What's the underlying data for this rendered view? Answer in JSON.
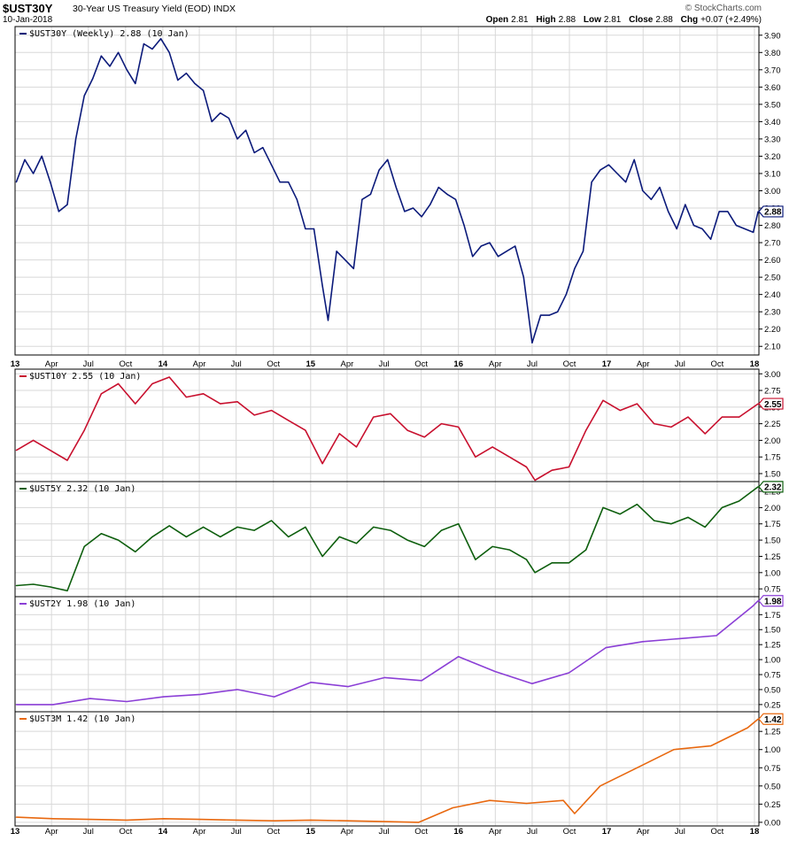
{
  "header": {
    "symbol": "$UST30Y",
    "description": "30-Year US Treasury Yield (EOD)",
    "exchange": "INDX",
    "date": "10-Jan-2018",
    "brand": "© StockCharts.com",
    "open_label": "Open",
    "open": "2.81",
    "high_label": "High",
    "high": "2.88",
    "low_label": "Low",
    "low": "2.81",
    "close_label": "Close",
    "close": "2.88",
    "chg_label": "Chg",
    "chg": "+0.07 (+2.49%)"
  },
  "colors": {
    "UST30Y": "#0b1a7a",
    "UST10Y": "#c8102e",
    "UST5Y": "#0d5e0d",
    "UST2Y": "#8b3fd6",
    "UST3M": "#e8680f",
    "grid": "#d8d8d8"
  },
  "chart_data": {
    "type": "line",
    "x_axis": {
      "start": "2013-01-01",
      "end": "2018-01-12",
      "tick_labels": [
        "13",
        "Apr",
        "Jul",
        "Oct",
        "14",
        "Apr",
        "Jul",
        "Oct",
        "15",
        "Apr",
        "Jul",
        "Oct",
        "16",
        "Apr",
        "Jul",
        "Oct",
        "17",
        "Apr",
        "Jul",
        "Oct",
        "18"
      ],
      "tick_dates": [
        "2013-01-01",
        "2013-04-01",
        "2013-07-01",
        "2013-10-01",
        "2014-01-01",
        "2014-04-01",
        "2014-07-01",
        "2014-10-01",
        "2015-01-01",
        "2015-04-01",
        "2015-07-01",
        "2015-10-01",
        "2016-01-01",
        "2016-04-01",
        "2016-07-01",
        "2016-10-01",
        "2017-01-01",
        "2017-04-01",
        "2017-07-01",
        "2017-10-01",
        "2018-01-01"
      ]
    },
    "panels": [
      {
        "label": "$UST30Y (Weekly) 2.88 (10 Jan)",
        "last_value": "2.88",
        "color_key": "UST30Y",
        "y_ticks": [
          "2.10",
          "2.20",
          "2.30",
          "2.40",
          "2.50",
          "2.60",
          "2.70",
          "2.80",
          "2.90",
          "3.00",
          "3.10",
          "3.20",
          "3.30",
          "3.40",
          "3.50",
          "3.60",
          "3.70",
          "3.80",
          "3.90"
        ],
        "ylim": [
          2.05,
          3.95
        ],
        "x": [
          "2013-01-04",
          "2013-01-25",
          "2013-02-15",
          "2013-03-08",
          "2013-03-29",
          "2013-04-19",
          "2013-05-10",
          "2013-05-31",
          "2013-06-21",
          "2013-07-12",
          "2013-08-02",
          "2013-08-23",
          "2013-09-13",
          "2013-10-04",
          "2013-10-25",
          "2013-11-15",
          "2013-12-06",
          "2013-12-27",
          "2014-01-17",
          "2014-02-07",
          "2014-02-28",
          "2014-03-21",
          "2014-04-11",
          "2014-05-02",
          "2014-05-23",
          "2014-06-13",
          "2014-07-04",
          "2014-07-25",
          "2014-08-15",
          "2014-09-05",
          "2014-09-26",
          "2014-10-17",
          "2014-11-07",
          "2014-11-28",
          "2014-12-19",
          "2015-01-09",
          "2015-01-30",
          "2015-02-13",
          "2015-03-06",
          "2015-03-27",
          "2015-04-17",
          "2015-05-08",
          "2015-05-29",
          "2015-06-19",
          "2015-07-10",
          "2015-07-31",
          "2015-08-21",
          "2015-09-11",
          "2015-10-02",
          "2015-10-23",
          "2015-11-13",
          "2015-12-04",
          "2015-12-25",
          "2016-01-15",
          "2016-02-05",
          "2016-02-26",
          "2016-03-18",
          "2016-04-08",
          "2016-04-29",
          "2016-05-20",
          "2016-06-10",
          "2016-07-01",
          "2016-07-22",
          "2016-08-12",
          "2016-09-02",
          "2016-09-23",
          "2016-10-14",
          "2016-11-04",
          "2016-11-25",
          "2016-12-16",
          "2017-01-06",
          "2017-01-27",
          "2017-02-17",
          "2017-03-10",
          "2017-03-31",
          "2017-04-21",
          "2017-05-12",
          "2017-06-02",
          "2017-06-23",
          "2017-07-14",
          "2017-08-04",
          "2017-08-25",
          "2017-09-15",
          "2017-10-06",
          "2017-10-27",
          "2017-11-17",
          "2017-12-08",
          "2017-12-29",
          "2018-01-10"
        ],
        "values": [
          3.05,
          3.18,
          3.1,
          3.2,
          3.05,
          2.88,
          2.92,
          3.3,
          3.55,
          3.65,
          3.78,
          3.72,
          3.8,
          3.7,
          3.62,
          3.85,
          3.82,
          3.88,
          3.8,
          3.64,
          3.68,
          3.62,
          3.58,
          3.4,
          3.45,
          3.42,
          3.3,
          3.35,
          3.22,
          3.25,
          3.15,
          3.05,
          3.05,
          2.95,
          2.78,
          2.78,
          2.45,
          2.25,
          2.65,
          2.6,
          2.55,
          2.95,
          2.98,
          3.12,
          3.18,
          3.02,
          2.88,
          2.9,
          2.85,
          2.92,
          3.02,
          2.98,
          2.95,
          2.8,
          2.62,
          2.68,
          2.7,
          2.62,
          2.65,
          2.68,
          2.5,
          2.12,
          2.28,
          2.28,
          2.3,
          2.4,
          2.55,
          2.65,
          3.05,
          3.12,
          3.15,
          3.1,
          3.05,
          3.18,
          3.0,
          2.95,
          3.02,
          2.88,
          2.78,
          2.92,
          2.8,
          2.78,
          2.72,
          2.88,
          2.88,
          2.8,
          2.78,
          2.76,
          2.88
        ]
      },
      {
        "label": "$UST10Y 2.55 (10 Jan)",
        "last_value": "2.55",
        "color_key": "UST10Y",
        "y_ticks": [
          "1.50",
          "1.75",
          "2.00",
          "2.25",
          "2.50",
          "2.75",
          "3.00"
        ],
        "ylim": [
          1.38,
          3.07
        ],
        "x": [
          "2013-01-04",
          "2013-02-15",
          "2013-03-29",
          "2013-05-10",
          "2013-06-21",
          "2013-08-02",
          "2013-09-13",
          "2013-10-25",
          "2013-12-06",
          "2014-01-17",
          "2014-02-28",
          "2014-04-11",
          "2014-05-23",
          "2014-07-04",
          "2014-08-15",
          "2014-09-26",
          "2014-11-07",
          "2014-12-19",
          "2015-01-30",
          "2015-03-13",
          "2015-04-24",
          "2015-06-05",
          "2015-07-17",
          "2015-08-28",
          "2015-10-09",
          "2015-11-20",
          "2016-01-01",
          "2016-02-12",
          "2016-03-25",
          "2016-05-06",
          "2016-06-17",
          "2016-07-08",
          "2016-08-19",
          "2016-09-30",
          "2016-11-11",
          "2016-12-23",
          "2017-02-03",
          "2017-03-17",
          "2017-04-28",
          "2017-06-09",
          "2017-07-21",
          "2017-09-01",
          "2017-10-13",
          "2017-11-24",
          "2018-01-10"
        ],
        "values": [
          1.85,
          2.0,
          1.85,
          1.7,
          2.15,
          2.7,
          2.85,
          2.55,
          2.85,
          2.95,
          2.65,
          2.7,
          2.55,
          2.58,
          2.38,
          2.45,
          2.3,
          2.15,
          1.65,
          2.1,
          1.9,
          2.35,
          2.4,
          2.15,
          2.05,
          2.25,
          2.2,
          1.75,
          1.9,
          1.75,
          1.6,
          1.4,
          1.55,
          1.6,
          2.15,
          2.6,
          2.45,
          2.55,
          2.25,
          2.2,
          2.35,
          2.1,
          2.35,
          2.35,
          2.55
        ]
      },
      {
        "label": "$UST5Y 2.32 (10 Jan)",
        "last_value": "2.32",
        "color_key": "UST5Y",
        "y_ticks": [
          "0.75",
          "1.00",
          "1.25",
          "1.50",
          "1.75",
          "2.00",
          "2.25"
        ],
        "ylim": [
          0.63,
          2.4
        ],
        "x": [
          "2013-01-04",
          "2013-02-15",
          "2013-03-29",
          "2013-05-10",
          "2013-06-21",
          "2013-08-02",
          "2013-09-13",
          "2013-10-25",
          "2013-12-06",
          "2014-01-17",
          "2014-02-28",
          "2014-04-11",
          "2014-05-23",
          "2014-07-04",
          "2014-08-15",
          "2014-09-26",
          "2014-11-07",
          "2014-12-19",
          "2015-01-30",
          "2015-03-13",
          "2015-04-24",
          "2015-06-05",
          "2015-07-17",
          "2015-08-28",
          "2015-10-09",
          "2015-11-20",
          "2016-01-01",
          "2016-02-12",
          "2016-03-25",
          "2016-05-06",
          "2016-06-17",
          "2016-07-08",
          "2016-08-19",
          "2016-09-30",
          "2016-11-11",
          "2016-12-23",
          "2017-02-03",
          "2017-03-17",
          "2017-04-28",
          "2017-06-09",
          "2017-07-21",
          "2017-09-01",
          "2017-10-13",
          "2017-11-24",
          "2018-01-10"
        ],
        "values": [
          0.8,
          0.82,
          0.78,
          0.72,
          1.4,
          1.6,
          1.5,
          1.32,
          1.55,
          1.72,
          1.55,
          1.7,
          1.55,
          1.7,
          1.65,
          1.8,
          1.55,
          1.7,
          1.25,
          1.55,
          1.45,
          1.7,
          1.65,
          1.5,
          1.4,
          1.65,
          1.75,
          1.2,
          1.4,
          1.35,
          1.2,
          1.0,
          1.15,
          1.15,
          1.35,
          2.0,
          1.9,
          2.05,
          1.8,
          1.75,
          1.85,
          1.7,
          2.0,
          2.1,
          2.32
        ]
      },
      {
        "label": "$UST2Y 1.98 (10 Jan)",
        "last_value": "1.98",
        "color_key": "UST2Y",
        "y_ticks": [
          "0.25",
          "0.50",
          "0.75",
          "1.00",
          "1.25",
          "1.50",
          "1.75"
        ],
        "ylim": [
          0.13,
          2.05
        ],
        "x": [
          "2013-01-04",
          "2013-04-05",
          "2013-07-05",
          "2013-10-04",
          "2014-01-03",
          "2014-04-04",
          "2014-07-04",
          "2014-10-03",
          "2015-01-02",
          "2015-04-03",
          "2015-07-03",
          "2015-10-02",
          "2016-01-01",
          "2016-04-01",
          "2016-07-01",
          "2016-09-30",
          "2016-12-30",
          "2017-03-31",
          "2017-06-30",
          "2017-09-29",
          "2017-12-29",
          "2018-01-10"
        ],
        "values": [
          0.25,
          0.25,
          0.35,
          0.3,
          0.38,
          0.42,
          0.5,
          0.38,
          0.62,
          0.55,
          0.7,
          0.65,
          1.05,
          0.8,
          0.6,
          0.78,
          1.2,
          1.3,
          1.35,
          1.4,
          1.9,
          1.98
        ]
      },
      {
        "label": "$UST3M 1.42 (10 Jan)",
        "last_value": "1.42",
        "color_key": "UST3M",
        "y_ticks": [
          "0.00",
          "0.25",
          "0.50",
          "0.75",
          "1.00",
          "1.25"
        ],
        "ylim": [
          -0.05,
          1.52
        ],
        "x": [
          "2013-01-04",
          "2013-04-05",
          "2013-07-05",
          "2013-10-04",
          "2014-01-03",
          "2014-04-04",
          "2014-07-04",
          "2014-10-03",
          "2015-01-02",
          "2015-04-03",
          "2015-07-03",
          "2015-09-25",
          "2015-12-18",
          "2016-03-18",
          "2016-06-17",
          "2016-09-16",
          "2016-10-14",
          "2016-12-16",
          "2017-03-17",
          "2017-06-16",
          "2017-09-15",
          "2017-12-15",
          "2018-01-10"
        ],
        "values": [
          0.07,
          0.05,
          0.04,
          0.03,
          0.05,
          0.04,
          0.03,
          0.02,
          0.03,
          0.02,
          0.01,
          0.0,
          0.2,
          0.3,
          0.26,
          0.3,
          0.12,
          0.5,
          0.75,
          1.0,
          1.05,
          1.3,
          1.42
        ]
      }
    ]
  }
}
